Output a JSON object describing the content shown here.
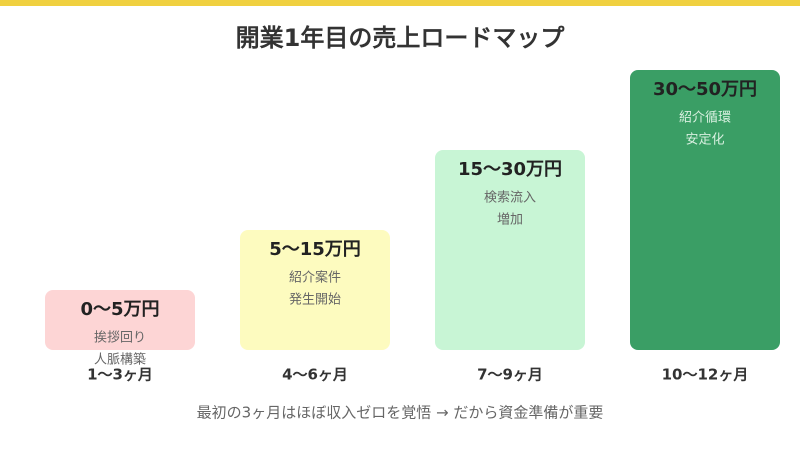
{
  "title": "開業1年目の売上ロードマップ",
  "steps": [
    {
      "amount": "0〜5万円",
      "description": [
        "挨拶回り",
        "人脈構築"
      ],
      "period": "1〜3ヶ月"
    },
    {
      "amount": "5〜15万円",
      "description": [
        "紹介案件",
        "発生開始"
      ],
      "period": "4〜6ヶ月"
    },
    {
      "amount": "15〜30万円",
      "description": [
        "検索流入",
        "増加"
      ],
      "period": "7〜9ヶ月"
    },
    {
      "amount": "30〜50万円",
      "description": [
        "紹介循環",
        "安定化"
      ],
      "period": "10〜12ヶ月"
    }
  ],
  "note": "最初の3ヶ月はほぼ収入ゼロを覚悟 → だから資金準備が重要"
}
